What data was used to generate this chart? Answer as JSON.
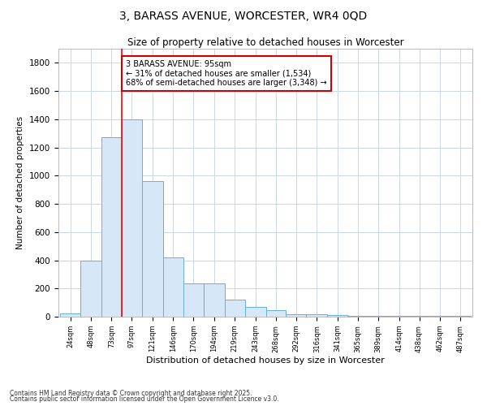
{
  "title_line1": "3, BARASS AVENUE, WORCESTER, WR4 0QD",
  "title_line2": "Size of property relative to detached houses in Worcester",
  "xlabel": "Distribution of detached houses by size in Worcester",
  "ylabel": "Number of detached properties",
  "bar_edges": [
    24,
    48,
    73,
    97,
    121,
    146,
    170,
    194,
    219,
    243,
    268,
    292,
    316,
    341,
    365,
    389,
    414,
    438,
    462,
    487,
    511
  ],
  "bar_heights": [
    25,
    400,
    1270,
    1400,
    960,
    420,
    235,
    235,
    120,
    70,
    45,
    20,
    15,
    10,
    8,
    6,
    5,
    5,
    4,
    3
  ],
  "bar_color": "#d6e8f7",
  "bar_edgecolor": "#6aaed6",
  "red_line_x": 97,
  "annotation_text": "3 BARASS AVENUE: 95sqm\n← 31% of detached houses are smaller (1,534)\n68% of semi-detached houses are larger (3,348) →",
  "annotation_box_color": "#ffffff",
  "annotation_box_edgecolor": "#cc0000",
  "ylim": [
    0,
    1900
  ],
  "yticks": [
    0,
    200,
    400,
    600,
    800,
    1000,
    1200,
    1400,
    1600,
    1800
  ],
  "bg_color": "#ffffff",
  "plot_bg_color": "#ffffff",
  "grid_color": "#c8d8e8",
  "footer_line1": "Contains HM Land Registry data © Crown copyright and database right 2025.",
  "footer_line2": "Contains public sector information licensed under the Open Government Licence v3.0."
}
